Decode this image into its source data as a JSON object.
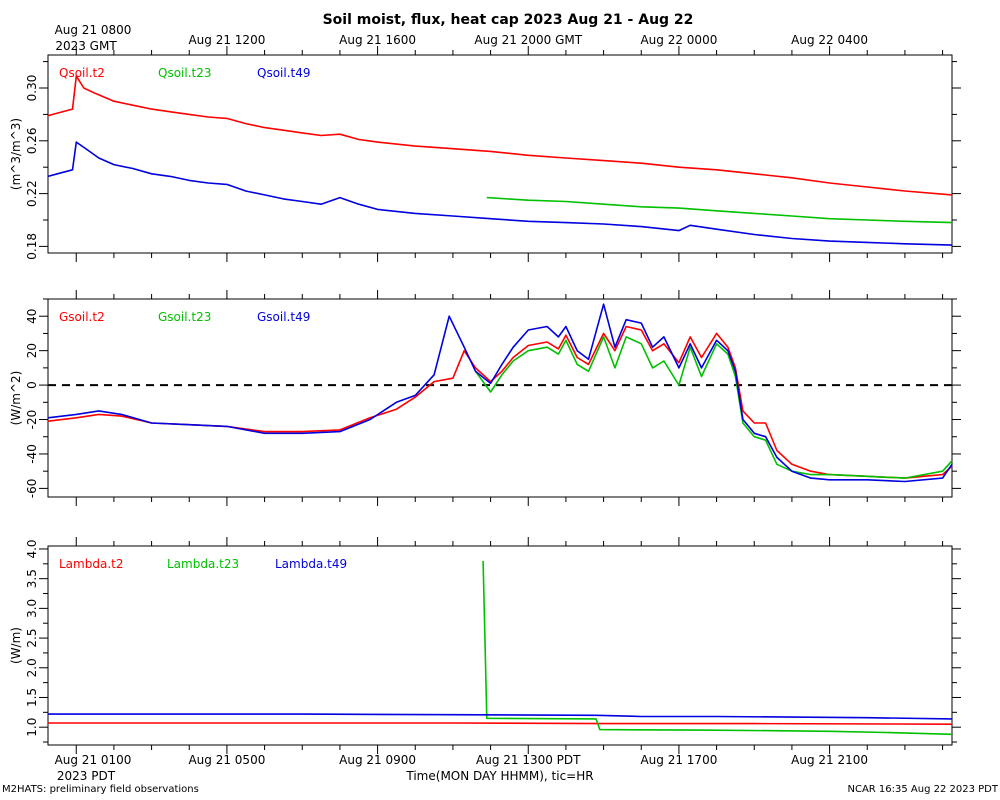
{
  "chart_data": {
    "type": "line",
    "title": "Soil moist, flux, heat cap 2023 Aug 21 - Aug 22",
    "xlabel": "Time(MON DAY HHMM), tic=HR",
    "top_labels": {
      "first_line1": "Aug 21 0800",
      "first_line2": "2023 GMT",
      "others": [
        "Aug 21 1200",
        "Aug 21 1600",
        "Aug 21 2000 GMT",
        "Aug 22 0000",
        "Aug 22 0400"
      ]
    },
    "bottom_labels": {
      "first_line1": "Aug 21 0100",
      "first_line2": "2023 PDT",
      "others": [
        "Aug 21 0500",
        "Aug 21 0900",
        "Aug 21 1300 PDT",
        "Aug 21 1700",
        "Aug 21 2100"
      ]
    },
    "xlim_hours": [
      -0.75,
      23.25
    ],
    "footer_left": "M2HATS: preliminary field observations",
    "footer_right": "NCAR 16:35 Aug 22 2023 PDT",
    "colors": {
      "red": "#ff0000",
      "green": "#00c000",
      "blue": "#0000e0"
    },
    "panels": [
      {
        "ylabel": "(m^3/m^3)",
        "ylim": [
          0.175,
          0.325
        ],
        "yticks": [
          0.18,
          0.22,
          0.26,
          0.3
        ],
        "ytick_labels": [
          "0.18",
          "0.22",
          "0.26",
          "0.30"
        ],
        "zero_line": false,
        "legend": [
          "Qsoil.t2",
          "Qsoil.t23",
          "Qsoil.t49"
        ],
        "series": [
          {
            "name": "Qsoil.t2",
            "color": "red",
            "x": [
              -0.75,
              -0.5,
              -0.1,
              0.0,
              0.2,
              0.5,
              1,
              1.5,
              2,
              2.5,
              3,
              3.5,
              4,
              4.5,
              5,
              5.5,
              6,
              6.5,
              7,
              7.5,
              8,
              9,
              10,
              11,
              12,
              13,
              14,
              15,
              16,
              17,
              18,
              19,
              20,
              21,
              22,
              23.25
            ],
            "y": [
              0.279,
              0.281,
              0.284,
              0.309,
              0.3,
              0.296,
              0.29,
              0.287,
              0.284,
              0.282,
              0.28,
              0.278,
              0.277,
              0.273,
              0.27,
              0.268,
              0.266,
              0.264,
              0.265,
              0.261,
              0.259,
              0.256,
              0.254,
              0.252,
              0.249,
              0.247,
              0.245,
              0.243,
              0.24,
              0.238,
              0.235,
              0.232,
              0.228,
              0.225,
              0.222,
              0.219
            ]
          },
          {
            "name": "Qsoil.t23",
            "color": "green",
            "x": [
              10.9,
              12,
              13,
              14,
              15,
              16,
              17,
              18,
              19,
              20,
              21,
              22,
              23.25
            ],
            "y": [
              0.217,
              0.215,
              0.214,
              0.212,
              0.21,
              0.209,
              0.207,
              0.205,
              0.203,
              0.201,
              0.2,
              0.199,
              0.198
            ]
          },
          {
            "name": "Qsoil.t49",
            "color": "blue",
            "x": [
              -0.75,
              -0.5,
              -0.1,
              0.0,
              0.3,
              0.6,
              1,
              1.5,
              2,
              2.5,
              3,
              3.5,
              4,
              4.5,
              5,
              5.5,
              6,
              6.5,
              7,
              7.5,
              8,
              9,
              10,
              11,
              12,
              13,
              14,
              15,
              16,
              16.3,
              17,
              18,
              19,
              20,
              21,
              22,
              23.25
            ],
            "y": [
              0.233,
              0.235,
              0.238,
              0.259,
              0.253,
              0.247,
              0.242,
              0.239,
              0.235,
              0.233,
              0.23,
              0.228,
              0.227,
              0.222,
              0.219,
              0.216,
              0.214,
              0.212,
              0.217,
              0.212,
              0.208,
              0.205,
              0.203,
              0.201,
              0.199,
              0.198,
              0.197,
              0.195,
              0.192,
              0.196,
              0.193,
              0.189,
              0.186,
              0.184,
              0.183,
              0.182,
              0.181
            ]
          }
        ]
      },
      {
        "ylabel": "(W/m^2)",
        "ylim": [
          -65,
          50
        ],
        "yticks": [
          -60,
          -40,
          -20,
          0,
          20,
          40
        ],
        "ytick_labels": [
          "-60",
          "-40",
          "-20",
          "0",
          "20",
          "40"
        ],
        "zero_line": true,
        "legend": [
          "Gsoil.t2",
          "Gsoil.t23",
          "Gsoil.t49"
        ],
        "series": [
          {
            "name": "Gsoil.t2",
            "color": "red",
            "x": [
              -0.75,
              0,
              0.6,
              1.2,
              2,
              3,
              4,
              5,
              6,
              7,
              7.8,
              8.5,
              9,
              9.5,
              10,
              10.3,
              10.6,
              11,
              11.3,
              11.6,
              12,
              12.5,
              12.8,
              13,
              13.3,
              13.6,
              14,
              14.3,
              14.6,
              15,
              15.3,
              15.6,
              16,
              16.3,
              16.6,
              17,
              17.3,
              17.5,
              17.7,
              18,
              18.3,
              18.6,
              19,
              19.5,
              20,
              21,
              22,
              23,
              23.25
            ],
            "y": [
              -21,
              -19,
              -17,
              -18,
              -22,
              -23,
              -24,
              -27,
              -27,
              -26,
              -19,
              -14,
              -7,
              2,
              4,
              20,
              10,
              2,
              8,
              16,
              23,
              25,
              21,
              29,
              16,
              12,
              30,
              20,
              34,
              32,
              20,
              24,
              13,
              28,
              16,
              30,
              22,
              10,
              -15,
              -22,
              -22,
              -38,
              -46,
              -50,
              -52,
              -53,
              -54,
              -52,
              -47
            ]
          },
          {
            "name": "Gsoil.t23",
            "color": "green",
            "x": [
              10.6,
              11,
              11.3,
              11.6,
              12,
              12.5,
              12.8,
              13,
              13.3,
              13.6,
              14,
              14.3,
              14.6,
              15,
              15.3,
              15.6,
              16,
              16.3,
              16.6,
              17,
              17.3,
              17.5,
              17.7,
              18,
              18.3,
              18.6,
              19,
              19.5,
              20,
              21,
              22,
              23,
              23.25
            ],
            "y": [
              8,
              -4,
              6,
              14,
              20,
              22,
              18,
              26,
              12,
              8,
              28,
              10,
              28,
              24,
              10,
              14,
              0,
              22,
              5,
              24,
              18,
              5,
              -22,
              -30,
              -32,
              -46,
              -50,
              -52,
              -52,
              -53,
              -54,
              -50,
              -44
            ]
          },
          {
            "name": "Gsoil.t49",
            "color": "blue",
            "x": [
              -0.75,
              0,
              0.6,
              1.2,
              2,
              3,
              4,
              5,
              6,
              7,
              7.8,
              8.5,
              9,
              9.5,
              9.9,
              10.3,
              10.6,
              11,
              11.3,
              11.6,
              12,
              12.5,
              12.8,
              13,
              13.3,
              13.6,
              14,
              14.3,
              14.6,
              15,
              15.3,
              15.6,
              16,
              16.3,
              16.6,
              17,
              17.3,
              17.5,
              17.7,
              18,
              18.3,
              18.6,
              19,
              19.5,
              20,
              21,
              22,
              23,
              23.25
            ],
            "y": [
              -19,
              -17,
              -15,
              -17,
              -22,
              -23,
              -24,
              -28,
              -28,
              -27,
              -20,
              -10,
              -6,
              6,
              40,
              22,
              8,
              1,
              12,
              22,
              32,
              34,
              28,
              34,
              20,
              15,
              47,
              22,
              38,
              36,
              22,
              28,
              10,
              24,
              10,
              26,
              20,
              8,
              -20,
              -28,
              -30,
              -42,
              -50,
              -54,
              -55,
              -55,
              -56,
              -54,
              -46
            ]
          }
        ]
      },
      {
        "ylabel": "(W/m)",
        "ylim": [
          0.7,
          4.05
        ],
        "yticks": [
          1.0,
          1.5,
          2.0,
          2.5,
          3.0,
          3.5,
          4.0
        ],
        "ytick_labels": [
          "1.0",
          "1.5",
          "2.0",
          "2.5",
          "3.0",
          "3.5",
          "4.0"
        ],
        "zero_line": false,
        "legend": [
          "Lambda.t2",
          "Lambda.t23",
          "Lambda.t49"
        ],
        "series": [
          {
            "name": "Lambda.t2",
            "color": "red",
            "x": [
              -0.75,
              2,
              6,
              10,
              14,
              18,
              23.25
            ],
            "y": [
              1.07,
              1.07,
              1.07,
              1.07,
              1.06,
              1.06,
              1.05
            ]
          },
          {
            "name": "Lambda.t23",
            "color": "green",
            "x": [
              10.8,
              10.9,
              13.8,
              13.9,
              16.5,
              18.5,
              20,
              21.5,
              23.25
            ],
            "y": [
              3.8,
              1.15,
              1.14,
              0.96,
              0.95,
              0.94,
              0.93,
              0.91,
              0.88
            ]
          },
          {
            "name": "Lambda.t49",
            "color": "blue",
            "x": [
              -0.75,
              2,
              6,
              10,
              13.8,
              15,
              17,
              19,
              21,
              23.25
            ],
            "y": [
              1.22,
              1.22,
              1.22,
              1.21,
              1.2,
              1.18,
              1.18,
              1.17,
              1.16,
              1.14
            ]
          }
        ]
      }
    ]
  }
}
